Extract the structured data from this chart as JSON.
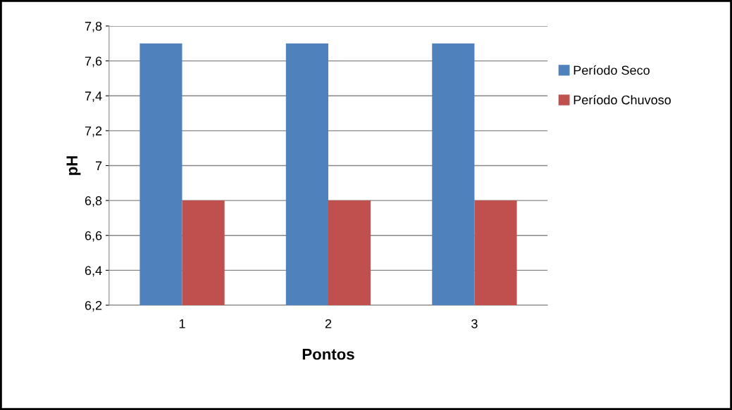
{
  "chart_data": {
    "type": "bar",
    "xlabel": "Pontos",
    "ylabel": "pH",
    "categories": [
      "1",
      "2",
      "3"
    ],
    "series": [
      {
        "name": "Período Seco",
        "color": "#4f81bd",
        "values": [
          7.7,
          7.7,
          7.7
        ]
      },
      {
        "name": "Período Chuvoso",
        "color": "#c0504d",
        "values": [
          6.8,
          6.8,
          6.8
        ]
      }
    ],
    "ylim": [
      6.2,
      7.8
    ],
    "yticks": [
      {
        "value": 6.2,
        "label": "6,2"
      },
      {
        "value": 6.4,
        "label": "6,4"
      },
      {
        "value": 6.6,
        "label": "6,6"
      },
      {
        "value": 6.8,
        "label": "6,8"
      },
      {
        "value": 7,
        "label": "7"
      },
      {
        "value": 7.2,
        "label": "7,2"
      },
      {
        "value": 7.4,
        "label": "7,4"
      },
      {
        "value": 7.6,
        "label": "7,6"
      },
      {
        "value": 7.8,
        "label": "7,8"
      }
    ],
    "grid": "y",
    "legend": "right"
  }
}
